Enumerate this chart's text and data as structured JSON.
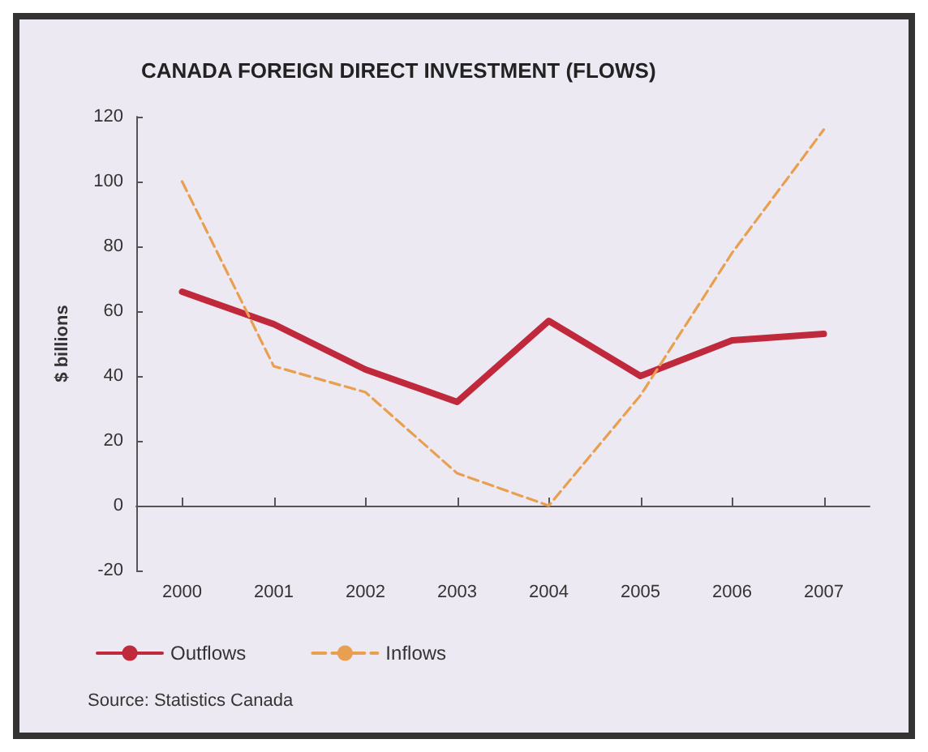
{
  "chart_data": {
    "type": "line",
    "title": "CANADA FOREIGN DIRECT INVESTMENT (FLOWS)",
    "ylabel": "$ billions",
    "annotations": [
      "Source: Statistics Canada"
    ],
    "categories": [
      "2000",
      "2001",
      "2002",
      "2003",
      "2004",
      "2005",
      "2006",
      "2007"
    ],
    "series": [
      {
        "name": "Outflows",
        "color": "#c0283c",
        "values": [
          66,
          56,
          42,
          32,
          57,
          40,
          51,
          53
        ],
        "line_style": "solid"
      },
      {
        "name": "Inflows",
        "color": "#e8a050",
        "values": [
          100,
          43,
          35,
          10,
          0,
          34,
          78,
          116
        ],
        "line_style": "dashed"
      }
    ],
    "ylim": [
      -20,
      120
    ],
    "yticks": [
      -20,
      0,
      20,
      40,
      60,
      80,
      100,
      120
    ],
    "legend": "bottom left",
    "marker": "none"
  }
}
